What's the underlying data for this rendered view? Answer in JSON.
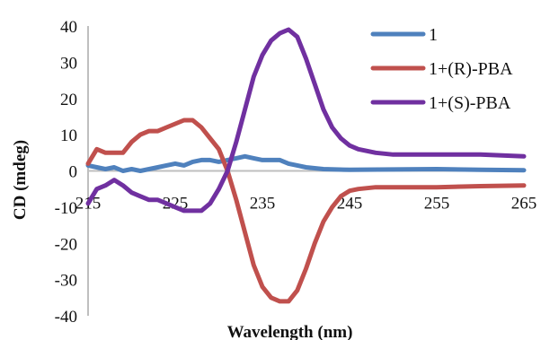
{
  "chart_data": {
    "type": "line",
    "title": "",
    "xlabel": "Wavelength (nm)",
    "ylabel": "CD (mdeg)",
    "xlim": [
      215,
      265
    ],
    "ylim": [
      -40,
      40
    ],
    "x_ticks": [
      215,
      225,
      235,
      245,
      255,
      265
    ],
    "y_ticks": [
      40,
      30,
      20,
      10,
      0,
      -10,
      -20,
      -30,
      -40
    ],
    "x_tick_labels": [
      "215",
      "225",
      "235",
      "245",
      "255",
      "265"
    ],
    "y_tick_labels": [
      "40",
      "30",
      "20",
      "10",
      "0",
      "-10",
      "-20",
      "-30",
      "-40"
    ],
    "grid": false,
    "legend_position": "top-right",
    "series": [
      {
        "name": "1",
        "color": "#4f81bd",
        "points": [
          [
            215,
            1.5
          ],
          [
            216,
            1
          ],
          [
            217,
            0.5
          ],
          [
            218,
            1
          ],
          [
            219,
            0
          ],
          [
            220,
            0.5
          ],
          [
            221,
            0
          ],
          [
            222,
            0.5
          ],
          [
            223,
            1
          ],
          [
            224,
            1.5
          ],
          [
            225,
            2
          ],
          [
            226,
            1.5
          ],
          [
            227,
            2.5
          ],
          [
            228,
            3
          ],
          [
            229,
            3
          ],
          [
            230,
            2.5
          ],
          [
            231,
            3
          ],
          [
            232,
            3.5
          ],
          [
            233,
            4
          ],
          [
            234,
            3.5
          ],
          [
            235,
            3
          ],
          [
            236,
            3
          ],
          [
            237,
            3
          ],
          [
            238,
            2
          ],
          [
            239,
            1.5
          ],
          [
            240,
            1
          ],
          [
            242,
            0.5
          ],
          [
            245,
            0.3
          ],
          [
            250,
            0.4
          ],
          [
            255,
            0.5
          ],
          [
            260,
            0.3
          ],
          [
            265,
            0.2
          ]
        ]
      },
      {
        "name": "1+(R)-PBA",
        "color": "#c0504d",
        "points": [
          [
            215,
            2
          ],
          [
            216,
            6
          ],
          [
            217,
            5
          ],
          [
            218,
            5
          ],
          [
            219,
            5
          ],
          [
            220,
            8
          ],
          [
            221,
            10
          ],
          [
            222,
            11
          ],
          [
            223,
            11
          ],
          [
            224,
            12
          ],
          [
            225,
            13
          ],
          [
            226,
            14
          ],
          [
            227,
            14
          ],
          [
            228,
            12
          ],
          [
            229,
            9
          ],
          [
            230,
            6
          ],
          [
            231,
            0
          ],
          [
            232,
            -8
          ],
          [
            233,
            -17
          ],
          [
            234,
            -26
          ],
          [
            235,
            -32
          ],
          [
            236,
            -35
          ],
          [
            237,
            -36
          ],
          [
            238,
            -36
          ],
          [
            239,
            -33
          ],
          [
            240,
            -27
          ],
          [
            241,
            -20
          ],
          [
            242,
            -14
          ],
          [
            243,
            -10
          ],
          [
            244,
            -7
          ],
          [
            245,
            -5.5
          ],
          [
            246,
            -5
          ],
          [
            248,
            -4.5
          ],
          [
            250,
            -4.5
          ],
          [
            255,
            -4.5
          ],
          [
            260,
            -4.2
          ],
          [
            265,
            -4
          ]
        ]
      },
      {
        "name": "1+(S)-PBA",
        "color": "#7030a0",
        "points": [
          [
            215,
            -9
          ],
          [
            216,
            -5
          ],
          [
            217,
            -4
          ],
          [
            218,
            -2.5
          ],
          [
            219,
            -4
          ],
          [
            220,
            -6
          ],
          [
            221,
            -7
          ],
          [
            222,
            -8
          ],
          [
            223,
            -8
          ],
          [
            224,
            -9
          ],
          [
            225,
            -10
          ],
          [
            226,
            -11
          ],
          [
            227,
            -11
          ],
          [
            228,
            -11
          ],
          [
            229,
            -9
          ],
          [
            230,
            -5
          ],
          [
            231,
            0
          ],
          [
            232,
            8
          ],
          [
            233,
            17
          ],
          [
            234,
            26
          ],
          [
            235,
            32
          ],
          [
            236,
            36
          ],
          [
            237,
            38
          ],
          [
            238,
            39
          ],
          [
            239,
            37
          ],
          [
            240,
            31
          ],
          [
            241,
            24
          ],
          [
            242,
            17
          ],
          [
            243,
            12
          ],
          [
            244,
            9
          ],
          [
            245,
            7
          ],
          [
            246,
            6
          ],
          [
            248,
            5
          ],
          [
            250,
            4.5
          ],
          [
            255,
            4.5
          ],
          [
            260,
            4.5
          ],
          [
            265,
            4
          ]
        ]
      }
    ]
  }
}
